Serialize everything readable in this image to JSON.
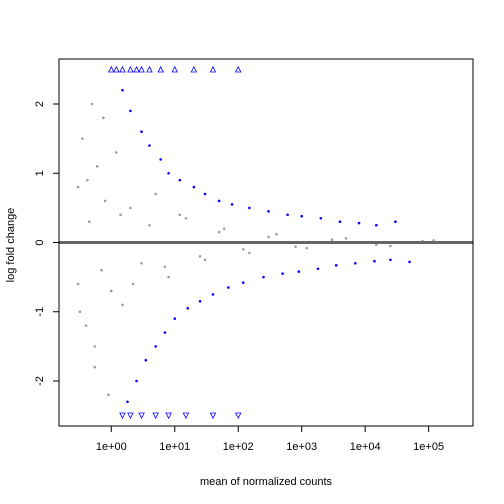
{
  "chart_data": {
    "type": "scatter",
    "subtype": "MA-plot",
    "title": "",
    "xlabel": "mean of normalized counts",
    "ylabel": "log fold change",
    "x_scale": "log10",
    "xlim": [
      0.15,
      500000
    ],
    "ylim": [
      -2.65,
      2.65
    ],
    "x_ticks": [
      {
        "value": 1,
        "label": "1e+00"
      },
      {
        "value": 10,
        "label": "1e+01"
      },
      {
        "value": 100,
        "label": "1e+02"
      },
      {
        "value": 1000,
        "label": "1e+03"
      },
      {
        "value": 10000,
        "label": "1e+04"
      },
      {
        "value": 100000,
        "label": "1e+05"
      }
    ],
    "y_ticks": [
      {
        "value": -2,
        "label": "-2"
      },
      {
        "value": -1,
        "label": "-1"
      },
      {
        "value": 0,
        "label": "0"
      },
      {
        "value": 1,
        "label": "1"
      },
      {
        "value": 2,
        "label": "2"
      }
    ],
    "reference_line": {
      "y": 0,
      "color": "#666666"
    },
    "series": [
      {
        "color": "#9E9E9E",
        "x": [
          0.3,
          0.3,
          0.35,
          0.4,
          0.45,
          0.5,
          0.55,
          0.6,
          0.7,
          0.8,
          0.9,
          1.2,
          1.5,
          2,
          3,
          5,
          8,
          15,
          30,
          60,
          150,
          400,
          1200,
          5000,
          25000,
          120000,
          0.32,
          0.42,
          0.55,
          0.75,
          1.0,
          1.4,
          2.2,
          4,
          7,
          12,
          25,
          50,
          120,
          300,
          800,
          3000,
          15000,
          80000
        ],
        "y": [
          0.8,
          -0.6,
          1.5,
          -1.2,
          0.3,
          2.0,
          -1.8,
          1.1,
          -0.4,
          0.6,
          -2.2,
          1.3,
          -0.9,
          0.5,
          -0.3,
          0.7,
          -0.5,
          0.35,
          -0.25,
          0.2,
          -0.15,
          0.12,
          -0.08,
          0.06,
          -0.05,
          0.03,
          -1.0,
          0.9,
          -1.5,
          1.8,
          -0.7,
          0.4,
          -0.6,
          0.25,
          -0.35,
          0.4,
          -0.2,
          0.15,
          -0.1,
          0.08,
          -0.06,
          0.04,
          -0.03,
          0.02
        ]
      },
      {
        "color": "#0000FF",
        "x": [
          1.5,
          2,
          3,
          4,
          6,
          8,
          12,
          20,
          30,
          50,
          80,
          150,
          300,
          600,
          1000,
          2000,
          4000,
          8000,
          15000,
          30000,
          1.8,
          2.5,
          3.5,
          5,
          7,
          10,
          16,
          25,
          40,
          70,
          120,
          250,
          500,
          900,
          1800,
          3500,
          7000,
          14000,
          25000,
          50000
        ],
        "y": [
          2.2,
          1.9,
          1.6,
          1.4,
          1.2,
          1.0,
          0.9,
          0.8,
          0.7,
          0.6,
          0.55,
          0.5,
          0.45,
          0.4,
          0.38,
          0.35,
          0.3,
          0.28,
          0.25,
          0.3,
          -2.3,
          -2.0,
          -1.7,
          -1.5,
          -1.3,
          -1.1,
          -0.95,
          -0.85,
          -0.75,
          -0.65,
          -0.58,
          -0.5,
          -0.45,
          -0.42,
          -0.38,
          -0.33,
          -0.3,
          -0.27,
          -0.25,
          -0.28
        ]
      }
    ],
    "clipped_upper": {
      "color": "#0000FF",
      "y": 2.5,
      "x": [
        1,
        1.2,
        1.5,
        2,
        2.5,
        3,
        4,
        6,
        10,
        20,
        40,
        100
      ]
    },
    "clipped_lower": {
      "color": "#0000FF",
      "y": -2.5,
      "x": [
        1.5,
        2,
        3,
        5,
        8,
        15,
        40,
        100
      ]
    },
    "legend": "none",
    "grid": false
  }
}
